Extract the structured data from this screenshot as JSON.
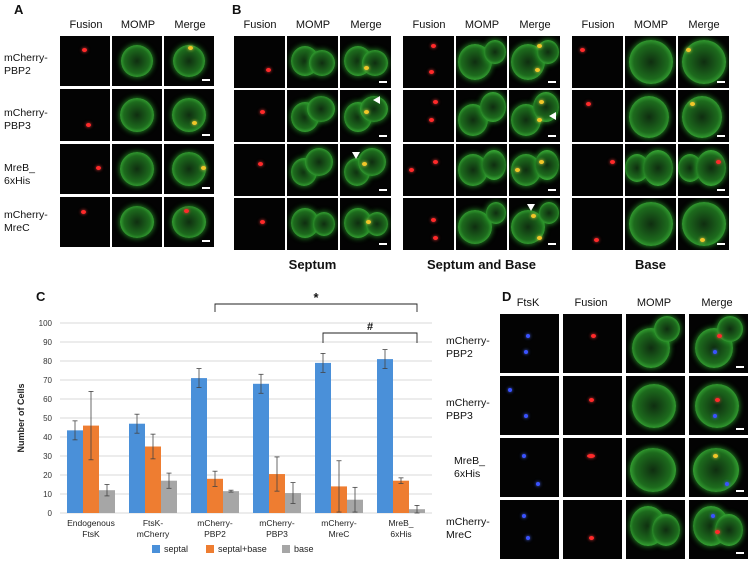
{
  "panels": {
    "a": {
      "letter": "A",
      "columns": [
        "Fusion",
        "MOMP",
        "Merge"
      ],
      "rows": [
        "mCherry-\nPBP2",
        "mCherry-\nPBP3",
        "MreB_\n6xHis",
        "mCherry-\nMreC"
      ]
    },
    "b": {
      "letter": "B",
      "columns": [
        "Fusion",
        "MOMP",
        "Merge"
      ],
      "groups": [
        "Septum",
        "Septum and Base",
        "Base"
      ]
    },
    "c": {
      "letter": "C",
      "annotation_star": "*",
      "annotation_hash": "#"
    },
    "d": {
      "letter": "D",
      "columns": [
        "FtsK",
        "Fusion",
        "MOMP",
        "Merge"
      ],
      "rows": [
        "mCherry-\nPBP2",
        "mCherry-\nPBP3",
        "MreB_\n6xHis",
        "mCherry-\nMreC"
      ]
    }
  },
  "chart_data": {
    "type": "bar",
    "ylabel": "Number of Cells",
    "ylim": [
      0,
      100
    ],
    "yticks": [
      0,
      10,
      20,
      30,
      40,
      50,
      60,
      70,
      80,
      90,
      100
    ],
    "categories": [
      "Endogenous\nFtsK",
      "FtsK-\nmCherry",
      "mCherry-\nPBP2",
      "mCherry-\nPBP3",
      "mCherry-\nMreC",
      "MreB_\n6xHis"
    ],
    "series": [
      {
        "name": "septal",
        "color": "#4a90d9",
        "values": [
          43.5,
          47,
          71,
          68,
          79,
          81
        ],
        "errors": [
          5,
          5,
          5,
          5,
          5,
          5
        ]
      },
      {
        "name": "septal+base",
        "color": "#ee7d31",
        "values": [
          46,
          35,
          18,
          20.5,
          14,
          17
        ],
        "errors": [
          18,
          6.5,
          4,
          9,
          13.5,
          1.5
        ]
      },
      {
        "name": "base",
        "color": "#a6a6a6",
        "values": [
          12,
          17,
          11.5,
          10.5,
          7,
          2
        ],
        "errors": [
          3,
          4,
          0.5,
          5.5,
          6.5,
          2
        ]
      }
    ],
    "legend_position": "bottom",
    "grid": "horizontal"
  }
}
